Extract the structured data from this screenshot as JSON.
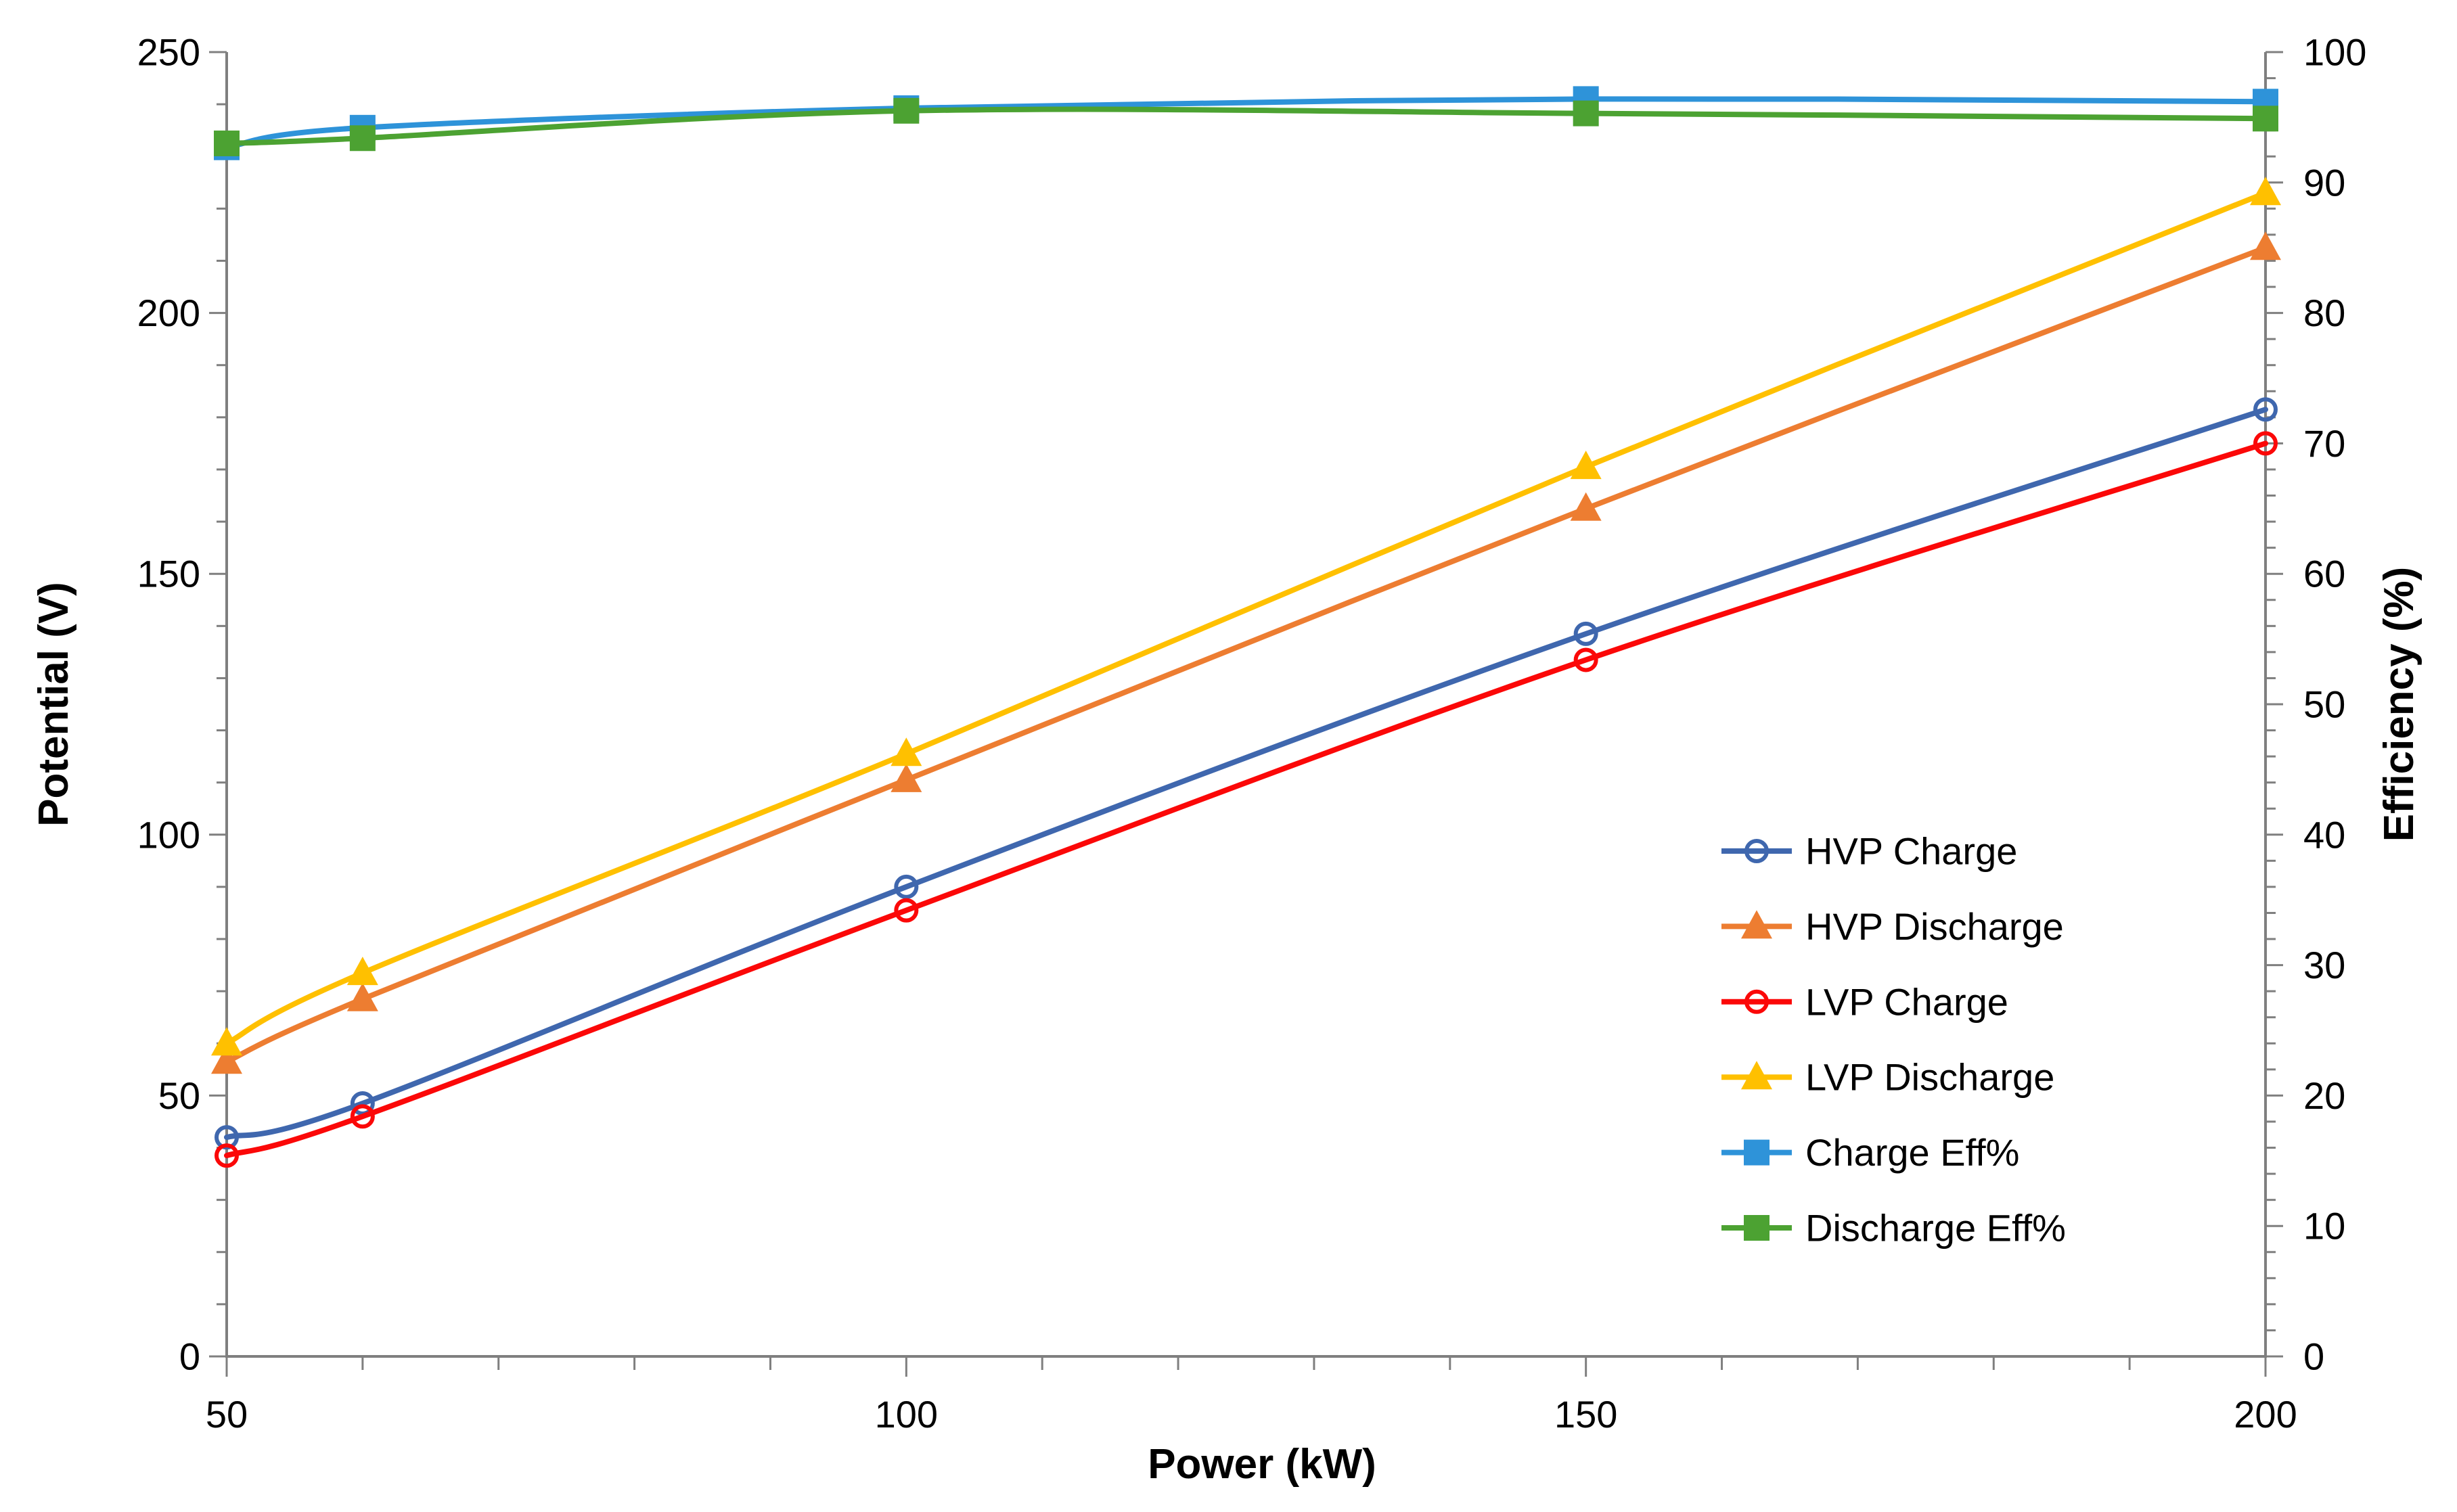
{
  "chart_data": {
    "type": "line",
    "title": "",
    "xlabel": "Power (kW)",
    "ylabel_left": "Potential (V)",
    "ylabel_right": "Efficiency (%)",
    "x": [
      50,
      60,
      100,
      150,
      200
    ],
    "x_axis": {
      "min": 50,
      "max": 200,
      "major_step": 50,
      "minor_step": 10,
      "major_ticks": [
        50,
        100,
        150,
        200
      ]
    },
    "left_axis": {
      "min": 0,
      "max": 250,
      "major_step": 50,
      "minor_step": 10,
      "major_ticks": [
        0,
        50,
        100,
        150,
        200,
        250
      ]
    },
    "right_axis": {
      "min": 0,
      "max": 100,
      "major_step": 10,
      "minor_step": 2,
      "major_ticks": [
        0,
        10,
        20,
        30,
        40,
        50,
        60,
        70,
        80,
        90,
        100
      ]
    },
    "grid": false,
    "legend_position": "inside-right-middle",
    "background_color": "#FFFFFF",
    "axis_color": "#7F7F7F",
    "text_color": "#000000",
    "series": [
      {
        "name": "HVP Charge",
        "slug": "hvp-charge",
        "axis": "left",
        "color": "#3F67AE",
        "marker": "circle-open",
        "values": [
          42,
          48.5,
          90,
          138.5,
          181.5
        ]
      },
      {
        "name": "HVP Discharge",
        "slug": "hvp-discharge",
        "axis": "left",
        "color": "#ED7D31",
        "marker": "triangle",
        "values": [
          56.5,
          68.5,
          110.5,
          162.5,
          212.5
        ]
      },
      {
        "name": "LVP Charge",
        "slug": "lvp-charge",
        "axis": "left",
        "color": "#FB0808",
        "marker": "circle-open",
        "values": [
          38.5,
          46,
          85.5,
          133.5,
          175
        ]
      },
      {
        "name": "LVP Discharge",
        "slug": "lvp-discharge",
        "axis": "left",
        "color": "#FFC000",
        "marker": "triangle",
        "values": [
          60,
          73.5,
          115.5,
          170.5,
          223
        ]
      },
      {
        "name": "Charge Eff%",
        "slug": "charge-eff",
        "axis": "right",
        "color": "#2E93D9",
        "marker": "square",
        "values": [
          92.7,
          94.2,
          95.7,
          96.4,
          96.2
        ]
      },
      {
        "name": "Discharge Eff%",
        "slug": "discharge-eff",
        "axis": "right",
        "color": "#4CA232",
        "marker": "square",
        "values": [
          93.0,
          93.4,
          95.5,
          95.3,
          94.9
        ]
      }
    ]
  }
}
